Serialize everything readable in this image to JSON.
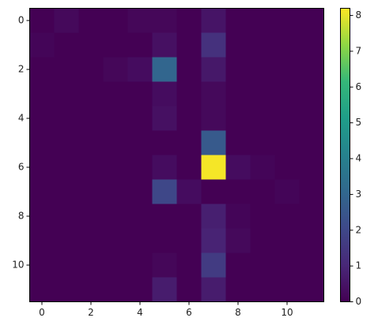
{
  "chart_data": {
    "type": "heatmap",
    "colormap": "viridis",
    "values": [
      [
        0,
        0.2,
        0,
        0,
        0.15,
        0.15,
        0,
        0.5,
        0,
        0,
        0,
        0
      ],
      [
        0.1,
        0,
        0,
        0,
        0,
        0.4,
        0,
        1.3,
        0,
        0,
        0,
        0
      ],
      [
        0,
        0,
        0,
        0.15,
        0.3,
        3.0,
        0,
        0.6,
        0,
        0,
        0,
        0
      ],
      [
        0,
        0,
        0,
        0,
        0,
        0.3,
        0,
        0.2,
        0,
        0,
        0,
        0
      ],
      [
        0,
        0,
        0,
        0,
        0,
        0.4,
        0,
        0.2,
        0,
        0,
        0,
        0
      ],
      [
        0,
        0,
        0,
        0,
        0,
        0,
        0,
        2.6,
        0,
        0,
        0,
        0
      ],
      [
        0,
        0,
        0,
        0,
        0,
        0.3,
        0,
        8.13,
        0.3,
        0.1,
        0,
        0
      ],
      [
        0,
        0,
        0,
        0,
        0,
        2.0,
        0.3,
        0,
        0,
        0,
        0.1,
        0
      ],
      [
        0,
        0,
        0,
        0,
        0,
        0,
        0,
        0.8,
        0.1,
        0,
        0,
        0
      ],
      [
        0,
        0,
        0,
        0,
        0,
        0,
        0,
        0.9,
        0.2,
        0,
        0,
        0
      ],
      [
        0,
        0,
        0,
        0,
        0,
        0.15,
        0,
        1.6,
        0,
        0,
        0,
        0
      ],
      [
        0,
        0,
        0,
        0,
        0,
        0.7,
        0,
        0.7,
        0,
        0,
        0,
        0
      ]
    ],
    "xlim": [
      -0.5,
      11.5
    ],
    "ylim": [
      11.5,
      -0.5
    ],
    "xticks": [
      0,
      2,
      4,
      6,
      8,
      10
    ],
    "yticks": [
      0,
      2,
      4,
      6,
      8,
      10
    ],
    "clim": [
      0,
      8.2
    ],
    "cticks": [
      0,
      1,
      2,
      3,
      4,
      5,
      6,
      7,
      8
    ]
  }
}
